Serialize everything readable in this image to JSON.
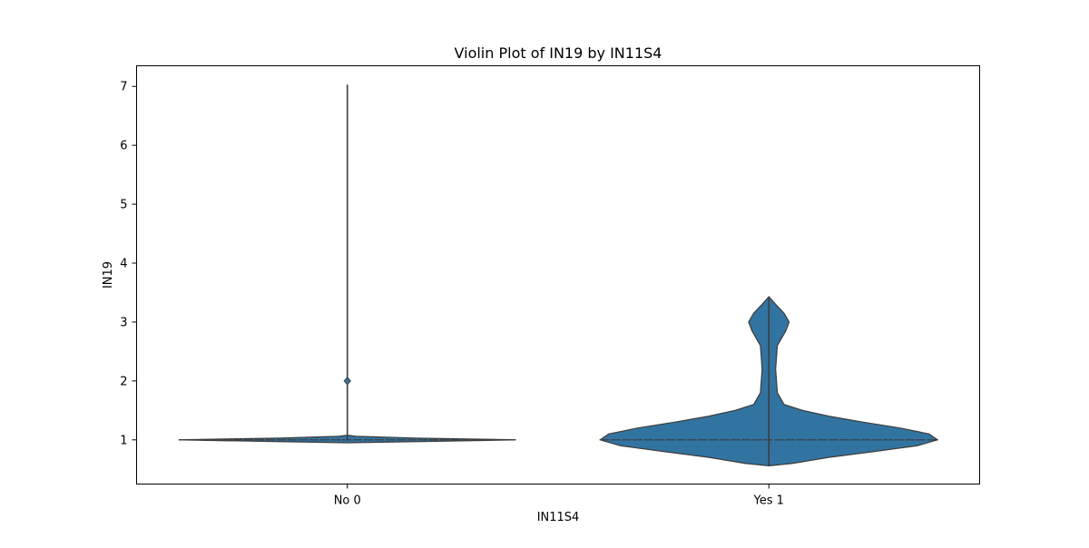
{
  "chart_data": {
    "type": "violin",
    "title": "Violin Plot of IN19 by IN11S4",
    "xlabel": "IN11S4",
    "ylabel": "IN19",
    "categories": [
      "No 0",
      "Yes 1"
    ],
    "ylim": [
      0.25,
      7.35
    ],
    "yticks": [
      1,
      2,
      3,
      4,
      5,
      6,
      7
    ],
    "grid": false,
    "color": "#3274a1",
    "outline_color": "#3d3d3d",
    "violins": [
      {
        "category": "No 0",
        "whisker_range": [
          1,
          7.03
        ],
        "quartiles": [
          1,
          1,
          1
        ],
        "outlier_marks": [
          2
        ],
        "density": [
          {
            "y": 0.95,
            "w": 0.0
          },
          {
            "y": 0.97,
            "w": 0.4
          },
          {
            "y": 0.99,
            "w": 0.8
          },
          {
            "y": 1.0,
            "w": 1.0
          },
          {
            "y": 1.01,
            "w": 0.8
          },
          {
            "y": 1.03,
            "w": 0.4
          },
          {
            "y": 1.06,
            "w": 0.05
          },
          {
            "y": 1.08,
            "w": 0.0
          }
        ]
      },
      {
        "category": "Yes 1",
        "whisker_range": [
          0.56,
          3.43
        ],
        "quartiles": [
          1,
          1,
          1
        ],
        "outlier_marks": [],
        "density": [
          {
            "y": 0.56,
            "w": 0.0
          },
          {
            "y": 0.6,
            "w": 0.14
          },
          {
            "y": 0.7,
            "w": 0.35
          },
          {
            "y": 0.8,
            "w": 0.62
          },
          {
            "y": 0.9,
            "w": 0.88
          },
          {
            "y": 1.0,
            "w": 1.0
          },
          {
            "y": 1.1,
            "w": 0.95
          },
          {
            "y": 1.2,
            "w": 0.78
          },
          {
            "y": 1.3,
            "w": 0.56
          },
          {
            "y": 1.4,
            "w": 0.36
          },
          {
            "y": 1.5,
            "w": 0.2
          },
          {
            "y": 1.6,
            "w": 0.09
          },
          {
            "y": 1.8,
            "w": 0.05
          },
          {
            "y": 2.2,
            "w": 0.04
          },
          {
            "y": 2.6,
            "w": 0.05
          },
          {
            "y": 2.85,
            "w": 0.1
          },
          {
            "y": 3.0,
            "w": 0.12
          },
          {
            "y": 3.15,
            "w": 0.09
          },
          {
            "y": 3.3,
            "w": 0.04
          },
          {
            "y": 3.43,
            "w": 0.0
          }
        ]
      }
    ]
  }
}
